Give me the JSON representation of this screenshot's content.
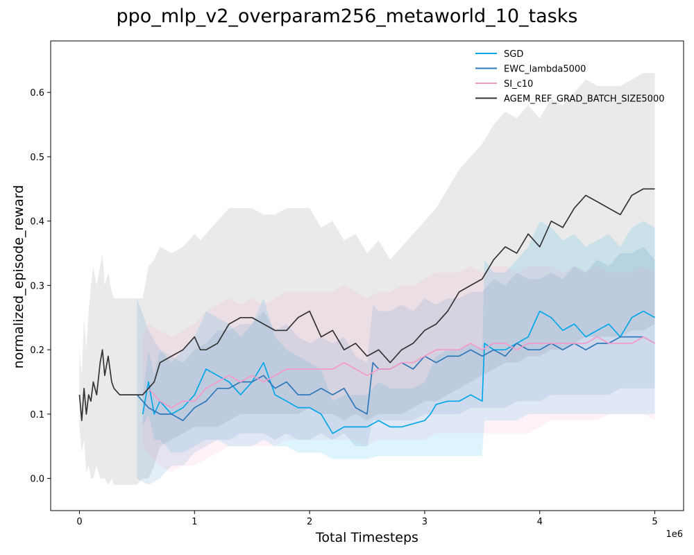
{
  "chart_data": {
    "type": "line",
    "title": "ppo_mlp_v2_overparam256_metaworld_10_tasks",
    "xlabel": "Total Timesteps",
    "ylabel": "normalized_episode_reward",
    "x_multiplier_label": "1e6",
    "xlim": [
      -0.25,
      5.25
    ],
    "ylim": [
      -0.05,
      0.68
    ],
    "x_ticks": [
      0,
      1,
      2,
      3,
      4,
      5
    ],
    "y_ticks": [
      0.0,
      0.1,
      0.2,
      0.3,
      0.4,
      0.5,
      0.6
    ],
    "x_tick_labels": [
      "0",
      "1",
      "2",
      "3",
      "4",
      "5"
    ],
    "y_tick_labels": [
      "0.0",
      "0.1",
      "0.2",
      "0.3",
      "0.4",
      "0.5",
      "0.6"
    ],
    "grid": false,
    "legend_position": "top-right",
    "series": [
      {
        "name": "SGD",
        "color": "#00a8e8",
        "x": [
          0.55,
          0.6,
          0.65,
          0.7,
          0.8,
          0.9,
          1.0,
          1.1,
          1.2,
          1.3,
          1.4,
          1.5,
          1.6,
          1.7,
          1.8,
          1.9,
          2.0,
          2.1,
          2.2,
          2.3,
          2.4,
          2.5,
          2.6,
          2.7,
          2.8,
          2.9,
          3.0,
          3.05,
          3.1,
          3.2,
          3.3,
          3.4,
          3.5,
          3.52,
          3.6,
          3.7,
          3.8,
          3.9,
          4.0,
          4.1,
          4.2,
          4.3,
          4.4,
          4.5,
          4.6,
          4.7,
          4.8,
          4.9,
          5.0
        ],
        "y": [
          0.1,
          0.15,
          0.1,
          0.12,
          0.1,
          0.11,
          0.13,
          0.17,
          0.16,
          0.15,
          0.13,
          0.15,
          0.18,
          0.13,
          0.12,
          0.11,
          0.11,
          0.1,
          0.07,
          0.08,
          0.08,
          0.08,
          0.09,
          0.08,
          0.08,
          0.085,
          0.09,
          0.1,
          0.115,
          0.12,
          0.12,
          0.13,
          0.12,
          0.21,
          0.2,
          0.2,
          0.21,
          0.22,
          0.26,
          0.25,
          0.23,
          0.24,
          0.22,
          0.23,
          0.24,
          0.22,
          0.25,
          0.26,
          0.25
        ],
        "band_lower": [
          0.08,
          0.1,
          0.06,
          0.06,
          0.04,
          0.04,
          0.05,
          0.06,
          0.06,
          0.05,
          0.05,
          0.05,
          0.06,
          0.05,
          0.05,
          0.04,
          0.04,
          0.04,
          0.03,
          0.03,
          0.03,
          0.03,
          0.035,
          0.035,
          0.035,
          0.035,
          0.035,
          0.035,
          0.035,
          0.035,
          0.035,
          0.035,
          0.035,
          0.09,
          0.09,
          0.09,
          0.09,
          0.1,
          0.1,
          0.1,
          0.1,
          0.1,
          0.1,
          0.1,
          0.1,
          0.1,
          0.1,
          0.1,
          0.1
        ],
        "band_upper": [
          0.13,
          0.2,
          0.16,
          0.2,
          0.18,
          0.2,
          0.22,
          0.26,
          0.25,
          0.24,
          0.22,
          0.24,
          0.28,
          0.22,
          0.2,
          0.19,
          0.18,
          0.17,
          0.12,
          0.13,
          0.13,
          0.13,
          0.15,
          0.14,
          0.14,
          0.14,
          0.15,
          0.17,
          0.19,
          0.2,
          0.2,
          0.21,
          0.2,
          0.34,
          0.32,
          0.32,
          0.34,
          0.36,
          0.4,
          0.39,
          0.37,
          0.38,
          0.36,
          0.37,
          0.38,
          0.36,
          0.39,
          0.4,
          0.39
        ]
      },
      {
        "name": "EWC_lambda5000",
        "color": "#2f78b7",
        "x": [
          0.5,
          0.6,
          0.7,
          0.8,
          0.9,
          1.0,
          1.1,
          1.2,
          1.3,
          1.4,
          1.5,
          1.6,
          1.7,
          1.8,
          1.9,
          2.0,
          2.1,
          2.2,
          2.3,
          2.4,
          2.5,
          2.55,
          2.6,
          2.7,
          2.8,
          2.9,
          3.0,
          3.1,
          3.2,
          3.3,
          3.4,
          3.5,
          3.6,
          3.7,
          3.8,
          3.9,
          4.0,
          4.1,
          4.2,
          4.3,
          4.4,
          4.5,
          4.6,
          4.7,
          4.8,
          4.9,
          5.0
        ],
        "y": [
          0.13,
          0.11,
          0.1,
          0.1,
          0.09,
          0.11,
          0.12,
          0.14,
          0.14,
          0.15,
          0.15,
          0.16,
          0.14,
          0.15,
          0.13,
          0.13,
          0.14,
          0.13,
          0.14,
          0.11,
          0.1,
          0.18,
          0.17,
          0.17,
          0.18,
          0.17,
          0.19,
          0.18,
          0.19,
          0.19,
          0.2,
          0.19,
          0.2,
          0.19,
          0.21,
          0.2,
          0.2,
          0.21,
          0.2,
          0.21,
          0.2,
          0.21,
          0.21,
          0.22,
          0.22,
          0.22,
          0.21
        ],
        "band_lower": [
          0.0,
          -0.01,
          0.0,
          0.02,
          0.02,
          0.04,
          0.05,
          0.06,
          0.06,
          0.07,
          0.07,
          0.07,
          0.06,
          0.07,
          0.06,
          0.06,
          0.07,
          0.06,
          0.07,
          0.05,
          0.05,
          0.09,
          0.09,
          0.09,
          0.09,
          0.09,
          0.1,
          0.1,
          0.1,
          0.1,
          0.11,
          0.11,
          0.11,
          0.11,
          0.12,
          0.12,
          0.12,
          0.13,
          0.13,
          0.13,
          0.13,
          0.13,
          0.13,
          0.14,
          0.14,
          0.14,
          0.14
        ],
        "band_upper": [
          0.28,
          0.23,
          0.2,
          0.19,
          0.18,
          0.2,
          0.21,
          0.23,
          0.23,
          0.24,
          0.24,
          0.26,
          0.23,
          0.24,
          0.22,
          0.21,
          0.22,
          0.21,
          0.22,
          0.19,
          0.18,
          0.27,
          0.26,
          0.26,
          0.27,
          0.26,
          0.28,
          0.27,
          0.28,
          0.28,
          0.29,
          0.29,
          0.31,
          0.3,
          0.32,
          0.31,
          0.31,
          0.32,
          0.31,
          0.33,
          0.32,
          0.34,
          0.33,
          0.35,
          0.35,
          0.36,
          0.34
        ]
      },
      {
        "name": "SI_c10",
        "color": "#f49ac8",
        "x": [
          0.55,
          0.6,
          0.7,
          0.8,
          0.9,
          1.0,
          1.1,
          1.2,
          1.3,
          1.4,
          1.5,
          1.6,
          1.7,
          1.8,
          1.9,
          2.0,
          2.1,
          2.2,
          2.3,
          2.4,
          2.5,
          2.6,
          2.7,
          2.8,
          2.9,
          3.0,
          3.1,
          3.2,
          3.3,
          3.4,
          3.5,
          3.6,
          3.7,
          3.8,
          3.9,
          4.0,
          4.1,
          4.2,
          4.3,
          4.4,
          4.5,
          4.6,
          4.7,
          4.8,
          4.9,
          5.0
        ],
        "y": [
          0.13,
          0.14,
          0.12,
          0.11,
          0.12,
          0.12,
          0.14,
          0.15,
          0.16,
          0.15,
          0.16,
          0.15,
          0.16,
          0.17,
          0.17,
          0.17,
          0.17,
          0.17,
          0.18,
          0.17,
          0.16,
          0.17,
          0.17,
          0.18,
          0.18,
          0.19,
          0.2,
          0.2,
          0.2,
          0.21,
          0.2,
          0.21,
          0.21,
          0.2,
          0.21,
          0.21,
          0.21,
          0.21,
          0.21,
          0.21,
          0.22,
          0.21,
          0.21,
          0.21,
          0.22,
          0.21
        ],
        "band_lower": [
          0.05,
          0.04,
          0.02,
          0.01,
          0.02,
          0.02,
          0.03,
          0.04,
          0.05,
          0.05,
          0.05,
          0.05,
          0.05,
          0.06,
          0.06,
          0.06,
          0.06,
          0.06,
          0.06,
          0.06,
          0.05,
          0.06,
          0.06,
          0.06,
          0.06,
          0.06,
          0.07,
          0.07,
          0.07,
          0.07,
          0.07,
          0.07,
          0.07,
          0.07,
          0.07,
          0.08,
          0.09,
          0.09,
          0.09,
          0.09,
          0.09,
          0.1,
          0.1,
          0.1,
          0.1,
          0.09
        ],
        "band_upper": [
          0.22,
          0.24,
          0.23,
          0.22,
          0.23,
          0.24,
          0.26,
          0.27,
          0.28,
          0.27,
          0.28,
          0.27,
          0.28,
          0.29,
          0.29,
          0.29,
          0.29,
          0.29,
          0.3,
          0.29,
          0.28,
          0.29,
          0.29,
          0.3,
          0.3,
          0.31,
          0.32,
          0.32,
          0.32,
          0.33,
          0.32,
          0.33,
          0.33,
          0.32,
          0.33,
          0.33,
          0.33,
          0.32,
          0.33,
          0.32,
          0.33,
          0.32,
          0.32,
          0.32,
          0.33,
          0.32
        ]
      },
      {
        "name": "AGEM_REF_GRAD_BATCH_SIZE5000",
        "color": "#333333",
        "x": [
          0.0,
          0.02,
          0.04,
          0.06,
          0.08,
          0.1,
          0.12,
          0.15,
          0.18,
          0.2,
          0.22,
          0.25,
          0.28,
          0.3,
          0.35,
          0.4,
          0.45,
          0.5,
          0.55,
          0.6,
          0.65,
          0.7,
          0.8,
          0.9,
          1.0,
          1.05,
          1.1,
          1.2,
          1.3,
          1.4,
          1.5,
          1.6,
          1.7,
          1.8,
          1.9,
          2.0,
          2.1,
          2.2,
          2.3,
          2.4,
          2.5,
          2.6,
          2.7,
          2.8,
          2.9,
          3.0,
          3.1,
          3.2,
          3.3,
          3.4,
          3.5,
          3.6,
          3.7,
          3.8,
          3.9,
          4.0,
          4.1,
          4.2,
          4.3,
          4.4,
          4.5,
          4.6,
          4.7,
          4.8,
          4.9,
          5.0
        ],
        "y": [
          0.13,
          0.09,
          0.14,
          0.1,
          0.13,
          0.12,
          0.15,
          0.13,
          0.18,
          0.2,
          0.16,
          0.19,
          0.15,
          0.14,
          0.13,
          0.13,
          0.13,
          0.13,
          0.13,
          0.14,
          0.15,
          0.18,
          0.19,
          0.2,
          0.22,
          0.2,
          0.2,
          0.21,
          0.24,
          0.25,
          0.25,
          0.24,
          0.23,
          0.23,
          0.25,
          0.26,
          0.22,
          0.23,
          0.2,
          0.21,
          0.19,
          0.2,
          0.18,
          0.2,
          0.21,
          0.23,
          0.24,
          0.26,
          0.29,
          0.3,
          0.31,
          0.34,
          0.36,
          0.35,
          0.38,
          0.36,
          0.4,
          0.39,
          0.42,
          0.44,
          0.43,
          0.42,
          0.41,
          0.44,
          0.45,
          0.45
        ],
        "band_lower": [
          0.08,
          0.04,
          0.06,
          0.01,
          0.02,
          0.0,
          0.0,
          0.02,
          0.0,
          0.0,
          0.0,
          -0.01,
          0.0,
          -0.01,
          -0.01,
          -0.01,
          -0.01,
          -0.01,
          0.0,
          0.0,
          0.02,
          0.05,
          0.06,
          0.07,
          0.08,
          0.08,
          0.08,
          0.08,
          0.09,
          0.1,
          0.1,
          0.1,
          0.1,
          0.1,
          0.1,
          0.11,
          0.1,
          0.1,
          0.09,
          0.1,
          0.09,
          0.1,
          0.1,
          0.1,
          0.11,
          0.12,
          0.12,
          0.13,
          0.14,
          0.15,
          0.16,
          0.17,
          0.18,
          0.18,
          0.19,
          0.19,
          0.2,
          0.2,
          0.21,
          0.22,
          0.22,
          0.22,
          0.22,
          0.23,
          0.23,
          0.24
        ],
        "band_upper": [
          0.2,
          0.16,
          0.25,
          0.2,
          0.26,
          0.3,
          0.33,
          0.3,
          0.33,
          0.35,
          0.3,
          0.32,
          0.29,
          0.28,
          0.28,
          0.28,
          0.28,
          0.28,
          0.28,
          0.33,
          0.34,
          0.36,
          0.35,
          0.36,
          0.38,
          0.37,
          0.38,
          0.4,
          0.42,
          0.42,
          0.42,
          0.41,
          0.41,
          0.42,
          0.42,
          0.42,
          0.39,
          0.4,
          0.37,
          0.38,
          0.35,
          0.37,
          0.34,
          0.36,
          0.38,
          0.4,
          0.42,
          0.45,
          0.48,
          0.5,
          0.52,
          0.55,
          0.57,
          0.56,
          0.58,
          0.56,
          0.59,
          0.58,
          0.6,
          0.62,
          0.61,
          0.61,
          0.61,
          0.62,
          0.63,
          0.63
        ]
      }
    ]
  }
}
